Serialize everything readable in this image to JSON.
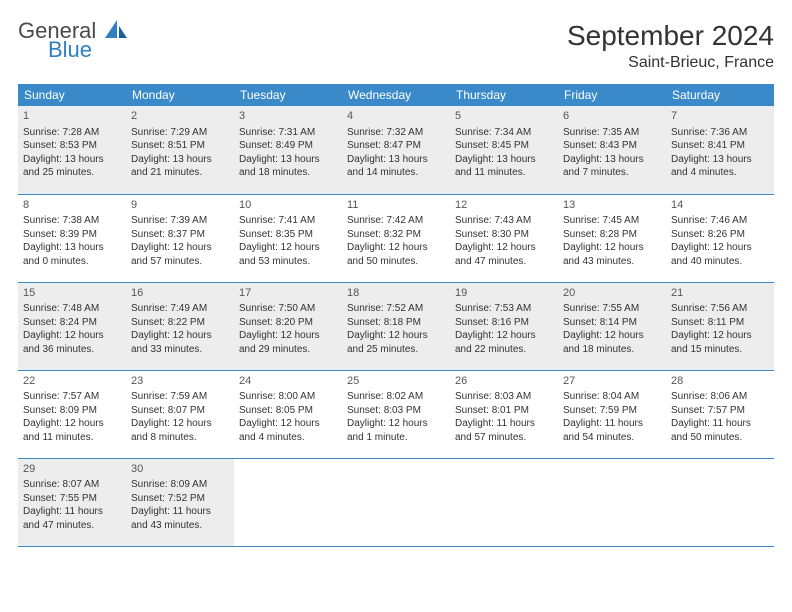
{
  "logo": {
    "general": "General",
    "blue": "Blue"
  },
  "title": "September 2024",
  "location": "Saint-Brieuc, France",
  "colors": {
    "header_bg": "#3a8ac9",
    "header_fg": "#ffffff",
    "shade_bg": "#ededed",
    "border": "#3a8ac9",
    "logo_blue": "#2f7fc2",
    "logo_gray": "#4a4a4a"
  },
  "weekdays": [
    "Sunday",
    "Monday",
    "Tuesday",
    "Wednesday",
    "Thursday",
    "Friday",
    "Saturday"
  ],
  "days": [
    {
      "n": 1,
      "sr": "7:28 AM",
      "ss": "8:53 PM",
      "dl": "13 hours and 25 minutes."
    },
    {
      "n": 2,
      "sr": "7:29 AM",
      "ss": "8:51 PM",
      "dl": "13 hours and 21 minutes."
    },
    {
      "n": 3,
      "sr": "7:31 AM",
      "ss": "8:49 PM",
      "dl": "13 hours and 18 minutes."
    },
    {
      "n": 4,
      "sr": "7:32 AM",
      "ss": "8:47 PM",
      "dl": "13 hours and 14 minutes."
    },
    {
      "n": 5,
      "sr": "7:34 AM",
      "ss": "8:45 PM",
      "dl": "13 hours and 11 minutes."
    },
    {
      "n": 6,
      "sr": "7:35 AM",
      "ss": "8:43 PM",
      "dl": "13 hours and 7 minutes."
    },
    {
      "n": 7,
      "sr": "7:36 AM",
      "ss": "8:41 PM",
      "dl": "13 hours and 4 minutes."
    },
    {
      "n": 8,
      "sr": "7:38 AM",
      "ss": "8:39 PM",
      "dl": "13 hours and 0 minutes."
    },
    {
      "n": 9,
      "sr": "7:39 AM",
      "ss": "8:37 PM",
      "dl": "12 hours and 57 minutes."
    },
    {
      "n": 10,
      "sr": "7:41 AM",
      "ss": "8:35 PM",
      "dl": "12 hours and 53 minutes."
    },
    {
      "n": 11,
      "sr": "7:42 AM",
      "ss": "8:32 PM",
      "dl": "12 hours and 50 minutes."
    },
    {
      "n": 12,
      "sr": "7:43 AM",
      "ss": "8:30 PM",
      "dl": "12 hours and 47 minutes."
    },
    {
      "n": 13,
      "sr": "7:45 AM",
      "ss": "8:28 PM",
      "dl": "12 hours and 43 minutes."
    },
    {
      "n": 14,
      "sr": "7:46 AM",
      "ss": "8:26 PM",
      "dl": "12 hours and 40 minutes."
    },
    {
      "n": 15,
      "sr": "7:48 AM",
      "ss": "8:24 PM",
      "dl": "12 hours and 36 minutes."
    },
    {
      "n": 16,
      "sr": "7:49 AM",
      "ss": "8:22 PM",
      "dl": "12 hours and 33 minutes."
    },
    {
      "n": 17,
      "sr": "7:50 AM",
      "ss": "8:20 PM",
      "dl": "12 hours and 29 minutes."
    },
    {
      "n": 18,
      "sr": "7:52 AM",
      "ss": "8:18 PM",
      "dl": "12 hours and 25 minutes."
    },
    {
      "n": 19,
      "sr": "7:53 AM",
      "ss": "8:16 PM",
      "dl": "12 hours and 22 minutes."
    },
    {
      "n": 20,
      "sr": "7:55 AM",
      "ss": "8:14 PM",
      "dl": "12 hours and 18 minutes."
    },
    {
      "n": 21,
      "sr": "7:56 AM",
      "ss": "8:11 PM",
      "dl": "12 hours and 15 minutes."
    },
    {
      "n": 22,
      "sr": "7:57 AM",
      "ss": "8:09 PM",
      "dl": "12 hours and 11 minutes."
    },
    {
      "n": 23,
      "sr": "7:59 AM",
      "ss": "8:07 PM",
      "dl": "12 hours and 8 minutes."
    },
    {
      "n": 24,
      "sr": "8:00 AM",
      "ss": "8:05 PM",
      "dl": "12 hours and 4 minutes."
    },
    {
      "n": 25,
      "sr": "8:02 AM",
      "ss": "8:03 PM",
      "dl": "12 hours and 1 minute."
    },
    {
      "n": 26,
      "sr": "8:03 AM",
      "ss": "8:01 PM",
      "dl": "11 hours and 57 minutes."
    },
    {
      "n": 27,
      "sr": "8:04 AM",
      "ss": "7:59 PM",
      "dl": "11 hours and 54 minutes."
    },
    {
      "n": 28,
      "sr": "8:06 AM",
      "ss": "7:57 PM",
      "dl": "11 hours and 50 minutes."
    },
    {
      "n": 29,
      "sr": "8:07 AM",
      "ss": "7:55 PM",
      "dl": "11 hours and 47 minutes."
    },
    {
      "n": 30,
      "sr": "8:09 AM",
      "ss": "7:52 PM",
      "dl": "11 hours and 43 minutes."
    }
  ],
  "labels": {
    "sunrise": "Sunrise:",
    "sunset": "Sunset:",
    "daylight": "Daylight:"
  },
  "layout": {
    "start_weekday": 0,
    "shaded_rows": [
      0,
      2,
      4
    ]
  }
}
